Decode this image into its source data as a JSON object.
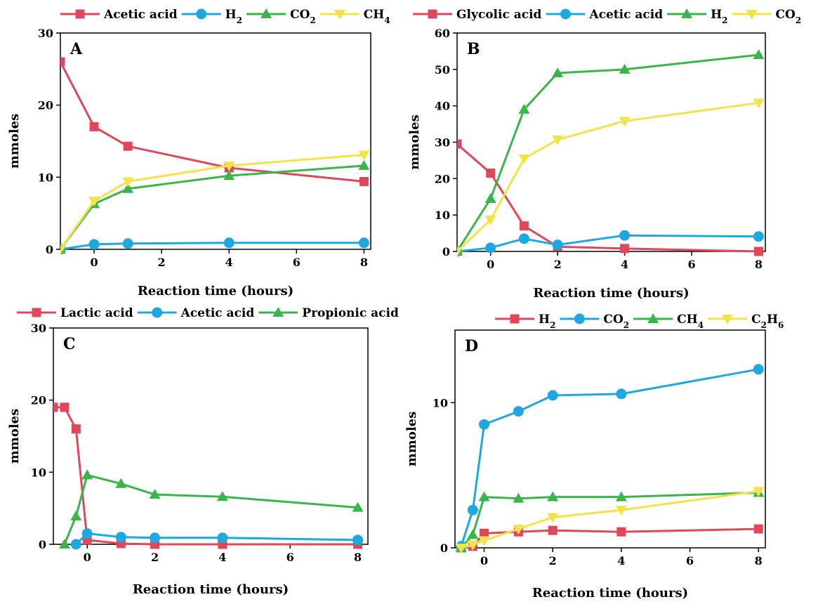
{
  "chart_data": [
    {
      "type": "line",
      "panel": "A",
      "xlabel": "Reaction time (hours)",
      "ylabel": "mmoles",
      "x_ticks": [
        0,
        2,
        4,
        6,
        8
      ],
      "y_ticks": [
        0,
        10,
        20,
        30
      ],
      "ylim": [
        0,
        30
      ],
      "series": [
        {
          "name": "Acetic acid",
          "color": "#e0475a",
          "marker": "square",
          "x": [
            -1,
            0,
            1,
            4,
            8
          ],
          "y": [
            26,
            17,
            14.3,
            11.3,
            9.4
          ]
        },
        {
          "name": "H₂",
          "color": "#1fa8e0",
          "marker": "circle",
          "x": [
            -1,
            0,
            1,
            4,
            8
          ],
          "y": [
            0,
            0.7,
            0.8,
            0.9,
            0.9
          ]
        },
        {
          "name": "CO₂",
          "color": "#39b54a",
          "marker": "triangle-up",
          "x": [
            -1,
            0,
            1,
            4,
            8
          ],
          "y": [
            0,
            6.3,
            8.4,
            10.2,
            11.6
          ]
        },
        {
          "name": "CH₄",
          "color": "#f2e34a",
          "marker": "triangle-down",
          "x": [
            -1,
            0,
            1,
            4,
            8
          ],
          "y": [
            0,
            6.7,
            9.4,
            11.6,
            13.1
          ]
        }
      ]
    },
    {
      "type": "line",
      "panel": "B",
      "xlabel": "Reaction time (hours)",
      "ylabel": "mmoles",
      "x_ticks": [
        0,
        2,
        4,
        6,
        8
      ],
      "y_ticks": [
        0,
        10,
        20,
        30,
        40,
        50,
        60
      ],
      "ylim": [
        0,
        60
      ],
      "series": [
        {
          "name": "Glycolic acid",
          "color": "#e0475a",
          "marker": "square",
          "x": [
            -1,
            0,
            1,
            2,
            4,
            8
          ],
          "y": [
            29.5,
            21.5,
            7,
            1.3,
            0.8,
            0
          ]
        },
        {
          "name": "Acetic acid",
          "color": "#1fa8e0",
          "marker": "circle",
          "x": [
            -1,
            0,
            1,
            2,
            4,
            8
          ],
          "y": [
            0,
            1,
            3.5,
            1.8,
            4.4,
            4.1
          ]
        },
        {
          "name": "H₂",
          "color": "#39b54a",
          "marker": "triangle-up",
          "x": [
            -1,
            0,
            1,
            2,
            4,
            8
          ],
          "y": [
            0,
            14.5,
            39,
            49,
            50,
            54
          ]
        },
        {
          "name": "CO₂",
          "color": "#f2e34a",
          "marker": "triangle-down",
          "x": [
            -1,
            0,
            1,
            2,
            4,
            8
          ],
          "y": [
            0,
            8.7,
            25.5,
            30.7,
            35.8,
            40.8
          ]
        }
      ]
    },
    {
      "type": "line",
      "panel": "C",
      "xlabel": "Reaction time (hours)",
      "ylabel": "mmoles",
      "x_ticks": [
        0,
        2,
        4,
        6,
        8
      ],
      "y_ticks": [
        0,
        10,
        20,
        30
      ],
      "ylim": [
        0,
        30
      ],
      "series": [
        {
          "name": "Lactic acid",
          "color": "#e0475a",
          "marker": "square",
          "x": [
            -1,
            -0.67,
            -0.33,
            0,
            1,
            2,
            4,
            8
          ],
          "y": [
            19,
            19,
            16,
            0.6,
            0.1,
            0,
            0,
            0
          ]
        },
        {
          "name": "Acetic acid",
          "color": "#1fa8e0",
          "marker": "circle",
          "x": [
            -0.33,
            0,
            1,
            2,
            4,
            8
          ],
          "y": [
            0,
            1.5,
            1,
            0.9,
            0.9,
            0.6
          ]
        },
        {
          "name": "Propionic acid",
          "color": "#39b54a",
          "marker": "triangle-up",
          "x": [
            -0.67,
            -0.33,
            0,
            1,
            2,
            4,
            8
          ],
          "y": [
            0,
            3.9,
            9.6,
            8.4,
            6.9,
            6.6,
            5.1
          ]
        }
      ]
    },
    {
      "type": "line",
      "panel": "D",
      "xlabel": "Reaction time (hours)",
      "ylabel": "mmoles",
      "x_ticks": [
        0,
        2,
        4,
        6,
        8
      ],
      "y_ticks": [
        0,
        10
      ],
      "ylim": [
        0,
        15
      ],
      "series": [
        {
          "name": "H₂",
          "color": "#e0475a",
          "marker": "square",
          "x": [
            -0.67,
            -0.33,
            0,
            1,
            2,
            4,
            8
          ],
          "y": [
            0,
            0.1,
            1,
            1.1,
            1.2,
            1.1,
            1.3
          ]
        },
        {
          "name": "CO₂",
          "color": "#1fa8e0",
          "marker": "circle",
          "x": [
            -0.67,
            -0.33,
            0,
            1,
            2,
            4,
            8
          ],
          "y": [
            0.1,
            2.6,
            8.5,
            9.4,
            10.5,
            10.6,
            12.3
          ]
        },
        {
          "name": "CH₄",
          "color": "#39b54a",
          "marker": "triangle-up",
          "x": [
            -0.67,
            -0.33,
            0,
            1,
            2,
            4,
            8
          ],
          "y": [
            0,
            0.9,
            3.5,
            3.4,
            3.5,
            3.5,
            3.8
          ]
        },
        {
          "name": "C₂H₆",
          "color": "#f2e34a",
          "marker": "triangle-down",
          "x": [
            -0.67,
            -0.33,
            0,
            1,
            2,
            4,
            8
          ],
          "y": [
            0,
            0.2,
            0.5,
            1.3,
            2.1,
            2.6,
            3.9
          ]
        }
      ]
    }
  ]
}
